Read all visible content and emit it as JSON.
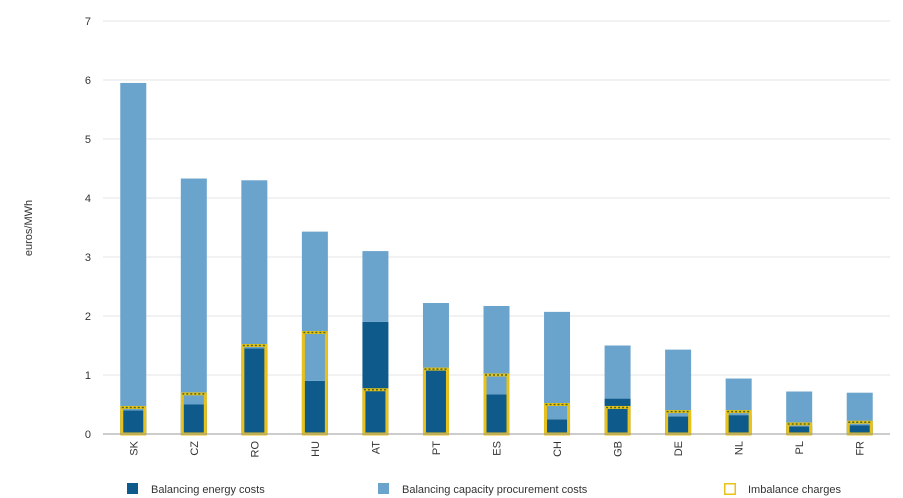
{
  "chart_data": {
    "type": "bar",
    "stacked": true,
    "categories": [
      "SK",
      "CZ",
      "RO",
      "HU",
      "AT",
      "PT",
      "ES",
      "CH",
      "GB",
      "DE",
      "NL",
      "PL",
      "FR"
    ],
    "ylabel": "euros/MWh",
    "xlabel": "",
    "ylim": [
      0,
      7
    ],
    "yticks": [
      0,
      1,
      2,
      3,
      4,
      5,
      6,
      7
    ],
    "grid": true,
    "legend_position": "bottom",
    "series": [
      {
        "name": "Balancing energy costs",
        "color": "#0e5a8a",
        "values": [
          0.4,
          0.5,
          1.45,
          0.9,
          1.9,
          1.1,
          0.67,
          0.25,
          0.6,
          0.3,
          0.32,
          0.13,
          0.15
        ]
      },
      {
        "name": "Balancing capacity procurement costs",
        "color": "#6aa3cc",
        "values": [
          5.55,
          3.83,
          2.85,
          2.53,
          1.2,
          1.12,
          1.5,
          1.82,
          0.9,
          1.13,
          0.62,
          0.59,
          0.55
        ]
      }
    ],
    "overlay_series": {
      "name": "Imbalance charges",
      "color": "#e8c21a",
      "values": [
        0.45,
        0.68,
        1.5,
        1.72,
        0.75,
        1.1,
        1.0,
        0.5,
        0.45,
        0.38,
        0.38,
        0.17,
        0.2
      ]
    }
  }
}
